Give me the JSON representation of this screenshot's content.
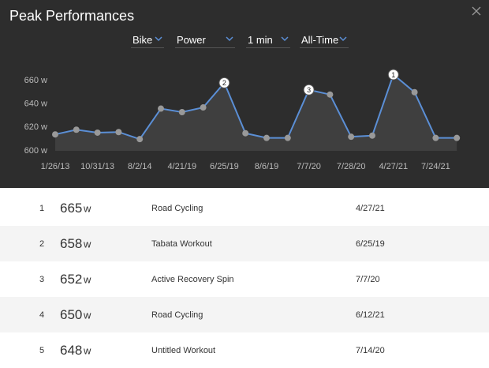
{
  "header": {
    "title": "Peak Performances",
    "filters": [
      "Bike",
      "Power",
      "1 min",
      "All-Time"
    ]
  },
  "chart": {
    "type": "line",
    "categories": [
      "1/26/13",
      null,
      "10/31/13",
      null,
      "8/2/14",
      null,
      "4/21/19",
      null,
      "6/25/19",
      null,
      "8/6/19",
      null,
      "7/7/20",
      null,
      "7/28/20",
      null,
      "4/27/21",
      null,
      "7/24/21",
      null
    ],
    "values": [
      614,
      618,
      615.5,
      616,
      610,
      636,
      633,
      637,
      658,
      615,
      611,
      611,
      652,
      648,
      612,
      613,
      665,
      650,
      611,
      611
    ],
    "point_labels": [
      null,
      null,
      null,
      null,
      null,
      null,
      null,
      null,
      "2",
      null,
      null,
      null,
      "3",
      null,
      null,
      null,
      "1",
      null,
      null,
      null
    ],
    "color": "#5b8fd6",
    "ylim": [
      600,
      668
    ],
    "yticks": [
      {
        "value": 600,
        "label": "600 w"
      },
      {
        "value": 620,
        "label": "620 w"
      },
      {
        "value": 640,
        "label": "640 w"
      },
      {
        "value": 660,
        "label": "660 w"
      }
    ]
  },
  "table": {
    "rows": [
      {
        "rank": 1,
        "power": 665,
        "unit": "w",
        "activity": "Road Cycling",
        "date": "4/27/21"
      },
      {
        "rank": 2,
        "power": 658,
        "unit": "w",
        "activity": "Tabata Workout",
        "date": "6/25/19"
      },
      {
        "rank": 3,
        "power": 652,
        "unit": "w",
        "activity": "Active Recovery Spin",
        "date": "7/7/20"
      },
      {
        "rank": 4,
        "power": 650,
        "unit": "w",
        "activity": "Road Cycling",
        "date": "6/12/21"
      },
      {
        "rank": 5,
        "power": 648,
        "unit": "w",
        "activity": "Untitled Workout",
        "date": "7/14/20"
      }
    ]
  }
}
